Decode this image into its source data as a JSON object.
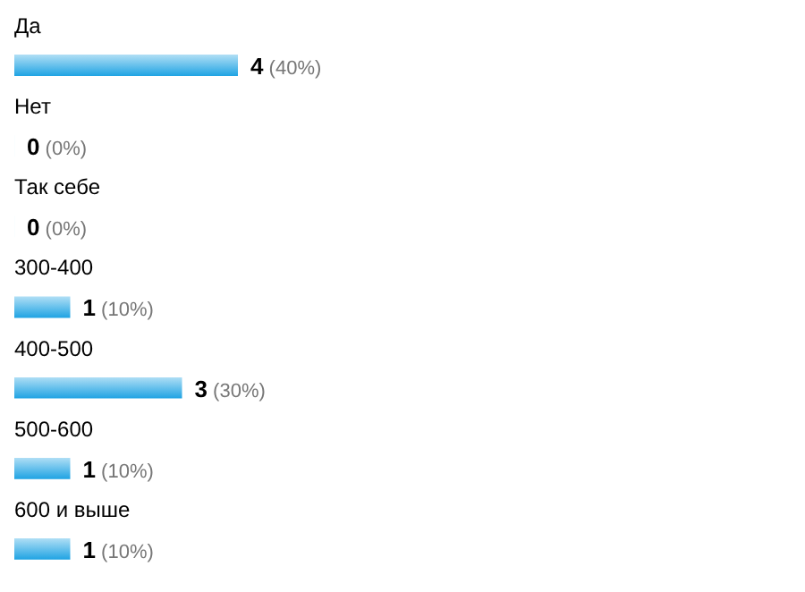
{
  "chart_data": {
    "type": "bar",
    "orientation": "horizontal",
    "categories": [
      "Да",
      "Нет",
      "Так себе",
      "300-400",
      "400-500",
      "500-600",
      "600 и выше"
    ],
    "values": [
      4,
      0,
      0,
      1,
      3,
      1,
      1
    ],
    "color": "#1fa3e3",
    "value_labels": [
      "4 (40%)",
      "0 (0%)",
      "0 (0%)",
      "1 (10%)",
      "3 (30%)",
      "1 (10%)",
      "1 (10%)"
    ],
    "grid": false,
    "legend": false
  }
}
